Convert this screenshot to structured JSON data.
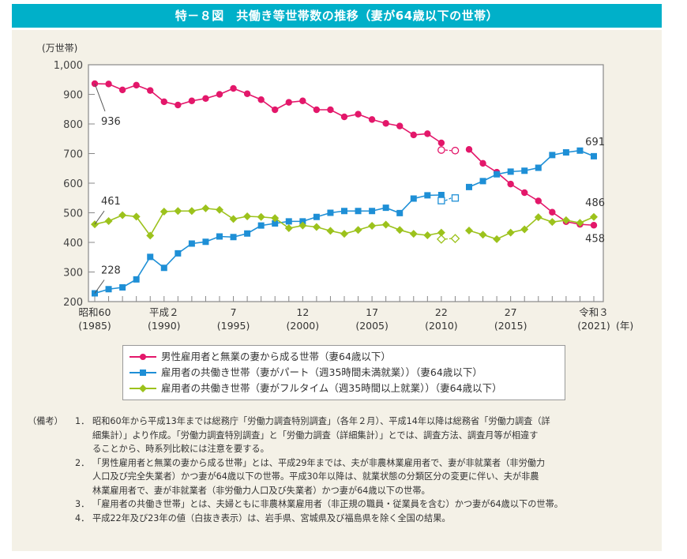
{
  "title": "特－８図　共働き等世帯数の推移（妻が64歳以下の世帯）",
  "chart_data": {
    "type": "line",
    "ylabel": "(万世帯)",
    "xlabel_unit": "(年)",
    "ylim": [
      200,
      1000
    ],
    "yticks": [
      "200",
      "300",
      "400",
      "500",
      "600",
      "700",
      "800",
      "900",
      "1,000"
    ],
    "xlim": [
      1985,
      2021
    ],
    "xtick_labels": [
      {
        "year": 1985,
        "era": "昭和60",
        "western": "(1985)"
      },
      {
        "year": 1990,
        "era": "平成２",
        "western": "(1990)"
      },
      {
        "year": 1995,
        "era": "7",
        "western": "(1995)"
      },
      {
        "year": 2000,
        "era": "12",
        "western": "(2000)"
      },
      {
        "year": 2005,
        "era": "17",
        "western": "(2005)"
      },
      {
        "year": 2010,
        "era": "22",
        "western": "(2010)"
      },
      {
        "year": 2015,
        "era": "27",
        "western": "(2015)"
      },
      {
        "year": 2021,
        "era": "令和３",
        "western": "(2021)"
      }
    ],
    "grid": false,
    "legend_position": "bottom",
    "x": [
      1985,
      1986,
      1987,
      1988,
      1989,
      1990,
      1991,
      1992,
      1993,
      1994,
      1995,
      1996,
      1997,
      1998,
      1999,
      2000,
      2001,
      2002,
      2003,
      2004,
      2005,
      2006,
      2007,
      2008,
      2009,
      2010,
      2011,
      2012,
      2013,
      2014,
      2015,
      2016,
      2017,
      2018,
      2019,
      2020,
      2021
    ],
    "series": [
      {
        "name": "男性雇用者と無業の妻から成る世帯（妻64歳以下）",
        "color": "#e3176a",
        "marker": "circle",
        "values": [
          936,
          935,
          915,
          931,
          913,
          875,
          864,
          878,
          886,
          900,
          920,
          902,
          882,
          848,
          873,
          878,
          848,
          848,
          824,
          833,
          815,
          802,
          793,
          763,
          767,
          736,
          null,
          714,
          667,
          637,
          597,
          568,
          540,
          502,
          470,
          461,
          458
        ],
        "open_values": {
          "2010": 712,
          "2011": 710
        },
        "labels": [
          {
            "year": 1985,
            "text": "936"
          },
          {
            "year": 2021,
            "text": "458"
          }
        ]
      },
      {
        "name": "雇用者の共働き世帯（妻がパート（週35時間未満就業））（妻64歳以下）",
        "color": "#1e8fd6",
        "marker": "square",
        "values": [
          228,
          242,
          248,
          275,
          351,
          314,
          363,
          396,
          402,
          420,
          418,
          430,
          457,
          464,
          471,
          471,
          486,
          500,
          506,
          506,
          506,
          517,
          499,
          548,
          559,
          560,
          null,
          587,
          607,
          630,
          639,
          642,
          652,
          695,
          704,
          710,
          691
        ],
        "open_values": {
          "2010": 541,
          "2011": 550
        },
        "labels": [
          {
            "year": 1985,
            "text": "228"
          },
          {
            "year": 2021,
            "text": "691"
          }
        ]
      },
      {
        "name": "雇用者の共働き世帯（妻がフルタイム（週35時間以上就業））（妻64歳以下）",
        "color": "#9cc21c",
        "marker": "diamond",
        "values": [
          461,
          472,
          492,
          487,
          423,
          504,
          506,
          506,
          515,
          510,
          479,
          488,
          486,
          482,
          448,
          457,
          452,
          439,
          429,
          442,
          456,
          460,
          442,
          429,
          424,
          433,
          null,
          440,
          426,
          411,
          433,
          444,
          485,
          469,
          475,
          466,
          486
        ],
        "open_values": {
          "2010": 411,
          "2011": 413
        },
        "labels": [
          {
            "year": 1985,
            "text": "461"
          },
          {
            "year": 2021,
            "text": "486"
          }
        ]
      }
    ]
  },
  "notes": {
    "label": "（備考）",
    "items": [
      {
        "num": "1．",
        "lines": [
          "昭和60年から平成13年までは総務庁「労働力調査特別調査」（各年２月）、平成14年以降は総務省「労働力調査（詳",
          "細集計）」より作成。「労働力調査特別調査」と「労働力調査（詳細集計）」とでは、調査方法、調査月等が相違す",
          "ることから、時系列比較には注意を要する。"
        ]
      },
      {
        "num": "2．",
        "lines": [
          "「男性雇用者と無業の妻から成る世帯」とは、平成29年までは、夫が非農林業雇用者で、妻が非就業者（非労働力",
          "人口及び完全失業者）かつ妻が64歳以下の世帯。平成30年以降は、就業状態の分類区分の変更に伴い、夫が非農",
          "林業雇用者で、妻が非就業者（非労働力人口及び失業者）かつ妻が64歳以下の世帯。"
        ]
      },
      {
        "num": "3．",
        "lines": [
          "「雇用者の共働き世帯」とは、夫婦ともに非農林業雇用者（非正規の職員・従業員を含む）かつ妻が64歳以下の世帯。"
        ]
      },
      {
        "num": "4．",
        "lines": [
          "平成22年及び23年の値（白抜き表示）は、岩手県、宮城県及び福島県を除く全国の結果。"
        ]
      }
    ]
  }
}
